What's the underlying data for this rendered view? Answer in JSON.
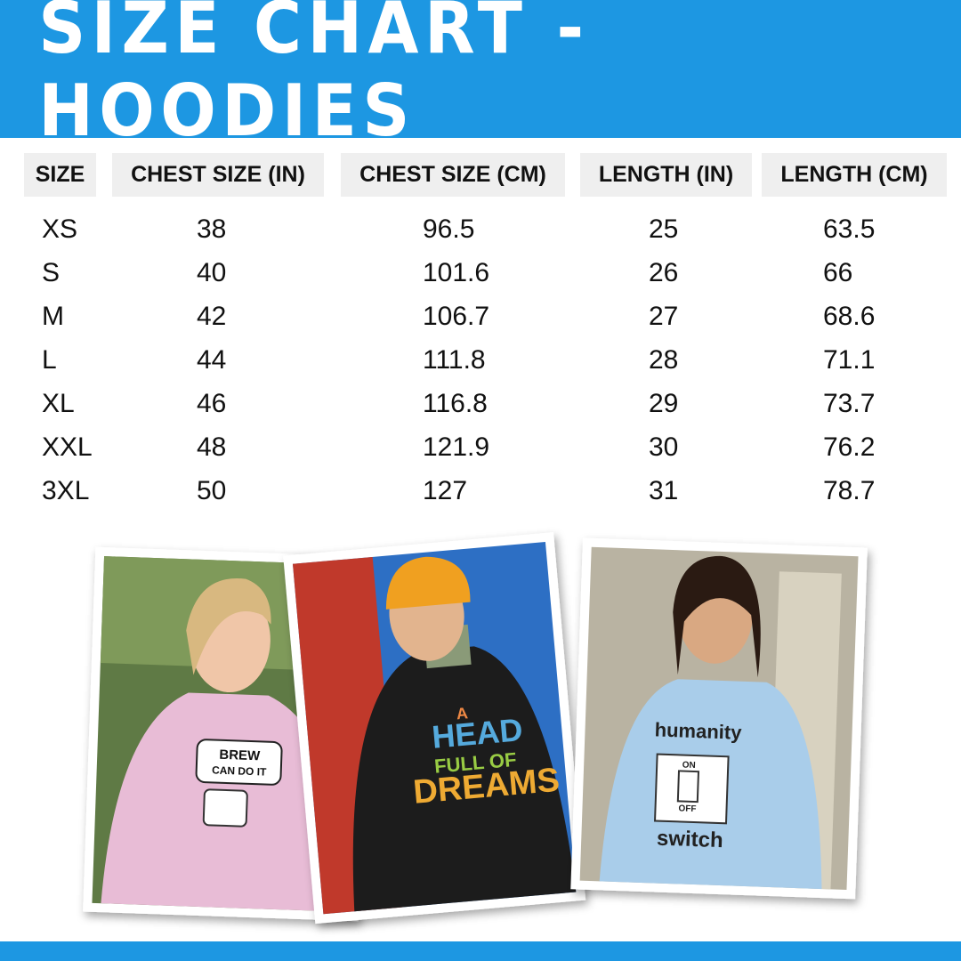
{
  "header": {
    "title": "SIZE CHART - HOODIES"
  },
  "table": {
    "columns": [
      "SIZE",
      "CHEST SIZE (IN)",
      "CHEST SIZE (CM)",
      "LENGTH (IN)",
      "LENGTH (CM)"
    ],
    "rows": [
      [
        "XS",
        38,
        96.5,
        25,
        63.5
      ],
      [
        "S",
        40,
        101.6,
        26,
        66
      ],
      [
        "M",
        42,
        106.7,
        27,
        68.6
      ],
      [
        "L",
        44,
        111.8,
        28,
        71.1
      ],
      [
        "XL",
        46,
        116.8,
        29,
        73.7
      ],
      [
        "XXL",
        48,
        121.9,
        30,
        76.2
      ],
      [
        "3XL",
        50,
        127,
        31,
        78.7
      ]
    ]
  },
  "photos": [
    {
      "print": [
        "BREW",
        "CAN DO IT"
      ]
    },
    {
      "print": [
        "A",
        "HEAD",
        "FULL OF",
        "DREAMS"
      ]
    },
    {
      "print": [
        "humanity",
        "ON",
        "OFF",
        "switch"
      ]
    }
  ]
}
